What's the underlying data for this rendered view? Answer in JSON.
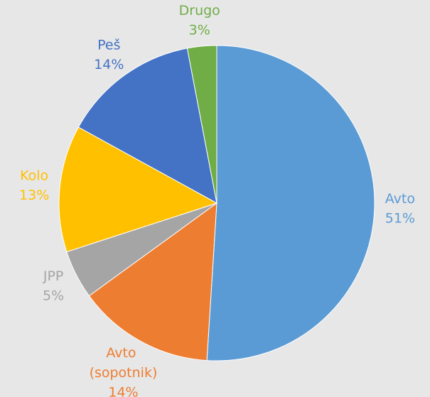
{
  "chart_data": {
    "type": "pie",
    "categories": [
      "Avto",
      "Avto (sopotnik)",
      "JPP",
      "Kolo",
      "Peš",
      "Drugo"
    ],
    "values": [
      51,
      14,
      5,
      13,
      14,
      3
    ],
    "value_labels": [
      "51%",
      "14%",
      "5%",
      "13%",
      "14%",
      "3%"
    ],
    "colors": [
      "#5b9bd5",
      "#ed7d31",
      "#a5a5a5",
      "#ffc000",
      "#4472c4",
      "#70ad47"
    ]
  }
}
